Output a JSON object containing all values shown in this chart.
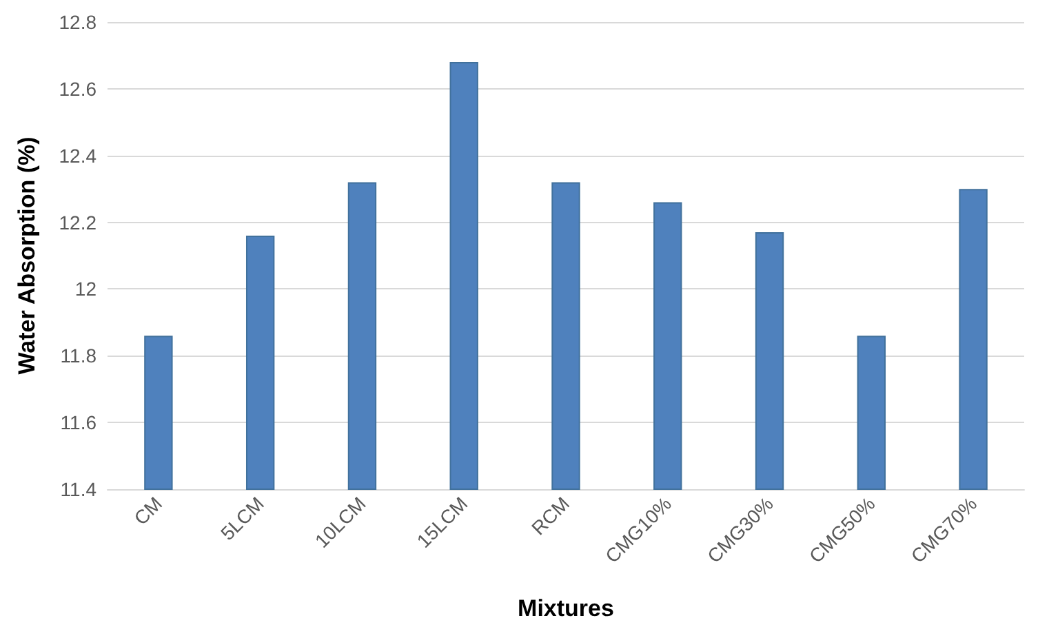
{
  "chart_data": {
    "type": "bar",
    "xlabel": "Mixtures",
    "ylabel": "Water Absorption (%)",
    "categories": [
      "CM",
      "5LCM",
      "10LCM",
      "15LCM",
      "RCM",
      "CMG10%",
      "CMG30%",
      "CMG50%",
      "CMG70%"
    ],
    "values": [
      11.86,
      12.16,
      12.32,
      12.68,
      12.32,
      12.26,
      12.17,
      11.86,
      12.3
    ],
    "color": "#4f81bd",
    "ylim": [
      11.4,
      12.8
    ],
    "yticks": [
      11.4,
      11.6,
      11.8,
      12,
      12.2,
      12.4,
      12.6,
      12.8
    ],
    "grid": "y"
  }
}
